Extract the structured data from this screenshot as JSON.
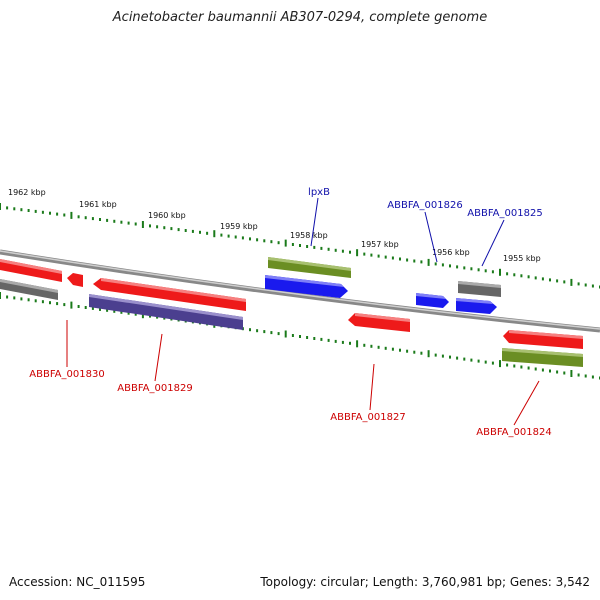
{
  "title": "Acinetobacter baumannii AB307-0294, complete genome",
  "footer": {
    "accession": "Accession: NC_011595",
    "summary": "Topology: circular; Length: 3,760,981 bp; Genes: 3,542"
  },
  "ruler": {
    "unit": "kbp",
    "labels": [
      "1962 kbp",
      "1961 kbp",
      "1960 kbp",
      "1959 kbp",
      "1958 kbp",
      "1957 kbp",
      "1956 kbp",
      "1955 kbp"
    ]
  },
  "genes": [
    {
      "id": "lpxB",
      "label": "lpxB",
      "strand": "+",
      "color": "#1010ee"
    },
    {
      "id": "ABBFA_001826",
      "label": "ABBFA_001826",
      "strand": "+",
      "color": "#1010ee"
    },
    {
      "id": "ABBFA_001825",
      "label": "ABBFA_001825",
      "strand": "+",
      "color": "#1010ee"
    },
    {
      "id": "ABBFA_001830",
      "label": "ABBFA_001830",
      "strand": "-",
      "color": "#ee1010"
    },
    {
      "id": "ABBFA_001829",
      "label": "ABBFA_001829",
      "strand": "-",
      "color": "#ee1010"
    },
    {
      "id": "ABBFA_001827",
      "label": "ABBFA_001827",
      "strand": "-",
      "color": "#ee1010"
    },
    {
      "id": "ABBFA_001824",
      "label": "ABBFA_001824",
      "strand": "-",
      "color": "#ee1010"
    }
  ],
  "colors": {
    "cds_forward": "#1a1aee",
    "cds_reverse": "#ee1a1a",
    "gc_olive": "#6b8e23",
    "purple": "#4b3f8f",
    "gray": "#666666",
    "ruler": "#1a7a1a",
    "forward_label": "#1010aa",
    "reverse_label": "#cc0000"
  }
}
